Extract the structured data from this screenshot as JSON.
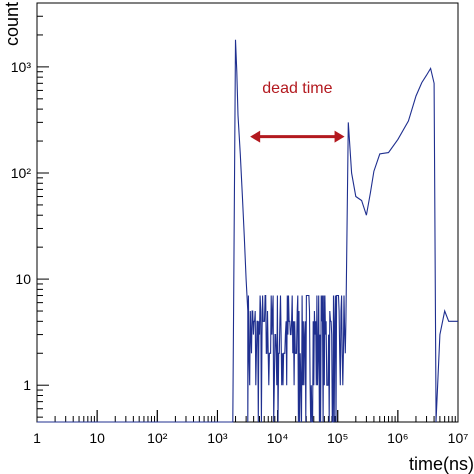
{
  "chart_data": {
    "type": "line",
    "title": "",
    "xlabel": "time(ns)",
    "ylabel": "count",
    "x_scale": "log",
    "y_scale": "log",
    "xlim": [
      1,
      10000000
    ],
    "ylim": [
      0.45,
      4000
    ],
    "grid": false,
    "x_ticks": [
      {
        "value": 1,
        "label": "1"
      },
      {
        "value": 10,
        "label": "10"
      },
      {
        "value": 100,
        "label": "10²"
      },
      {
        "value": 1000,
        "label": "10³"
      },
      {
        "value": 10000,
        "label": "10⁴"
      },
      {
        "value": 100000,
        "label": "10⁵"
      },
      {
        "value": 1000000,
        "label": "10⁶"
      },
      {
        "value": 10000000,
        "label": "10⁷"
      }
    ],
    "y_ticks": [
      {
        "value": 1,
        "label": "1"
      },
      {
        "value": 10,
        "label": "10"
      },
      {
        "value": 100,
        "label": "10²"
      },
      {
        "value": 1000,
        "label": "10³"
      }
    ],
    "series": [
      {
        "color": "#1f2f8f",
        "description_points": [
          [
            2000,
            1800
          ],
          [
            2100,
            900
          ],
          [
            2200,
            350
          ],
          [
            2400,
            150
          ],
          [
            2600,
            60
          ],
          [
            2800,
            25
          ],
          [
            3000,
            10
          ],
          [
            3200,
            5
          ],
          [
            150000,
            300
          ],
          [
            170000,
            100
          ],
          [
            200000,
            60
          ],
          [
            250000,
            55
          ],
          [
            300000,
            40
          ],
          [
            350000,
            60
          ],
          [
            400000,
            110
          ],
          [
            500000,
            140
          ],
          [
            700000,
            160
          ],
          [
            1000000,
            230
          ],
          [
            1500000,
            330
          ],
          [
            2000000,
            450
          ],
          [
            2500000,
            600
          ],
          [
            3000000,
            800
          ],
          [
            3500000,
            850
          ],
          [
            4000000,
            700
          ],
          [
            4300000,
            0.6
          ],
          [
            5000000,
            3
          ],
          [
            6000000,
            5
          ],
          [
            7000000,
            4
          ]
        ]
      }
    ],
    "annotation": {
      "text": "dead time",
      "color": "#b3191f",
      "x_from": 3500,
      "x_to": 130000,
      "y_arrow": 220
    }
  }
}
